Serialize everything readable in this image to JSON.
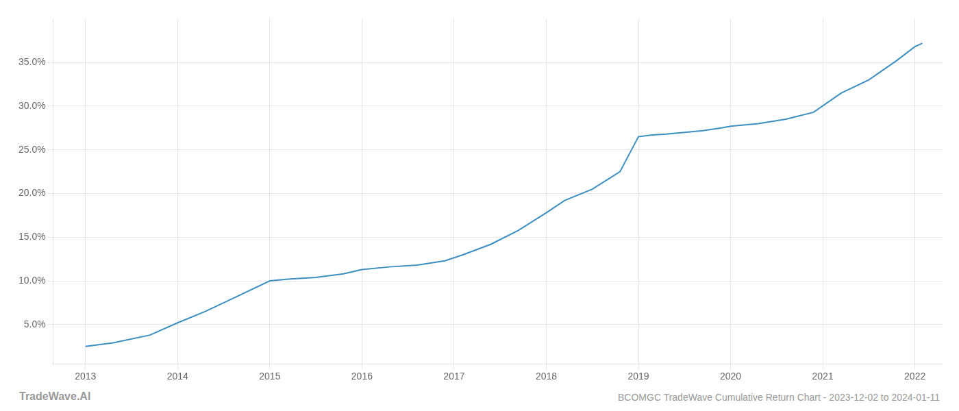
{
  "chart_data": {
    "type": "line",
    "x": [
      2013.0,
      2013.3,
      2013.7,
      2014.0,
      2014.3,
      2014.6,
      2015.0,
      2015.2,
      2015.5,
      2015.8,
      2016.0,
      2016.3,
      2016.6,
      2016.9,
      2017.1,
      2017.4,
      2017.7,
      2018.0,
      2018.2,
      2018.5,
      2018.8,
      2019.0,
      2019.15,
      2019.3,
      2019.5,
      2019.7,
      2019.9,
      2020.0,
      2020.3,
      2020.6,
      2020.9,
      2021.2,
      2021.5,
      2021.8,
      2022.0,
      2022.08
    ],
    "values": [
      2.5,
      2.9,
      3.8,
      5.2,
      6.5,
      8.0,
      10.0,
      10.2,
      10.4,
      10.8,
      11.3,
      11.6,
      11.8,
      12.3,
      13.0,
      14.2,
      15.8,
      17.8,
      19.2,
      20.5,
      22.5,
      26.5,
      26.7,
      26.8,
      27.0,
      27.2,
      27.5,
      27.7,
      28.0,
      28.5,
      29.3,
      31.5,
      33.0,
      35.2,
      36.8,
      37.2
    ],
    "color": "#3b8fc0",
    "xlim": [
      2012.65,
      2022.3
    ],
    "xticks": [
      2013,
      2014,
      2015,
      2016,
      2017,
      2018,
      2019,
      2020,
      2021,
      2022
    ],
    "ylim": [
      0.5,
      40
    ],
    "yticks": [
      {
        "value": 5.0,
        "label": "5.0%"
      },
      {
        "value": 10.0,
        "label": "10.0%"
      },
      {
        "value": 15.0,
        "label": "15.0%"
      },
      {
        "value": 20.0,
        "label": "20.0%"
      },
      {
        "value": 25.0,
        "label": "25.0%"
      },
      {
        "value": 30.0,
        "label": "30.0%"
      },
      {
        "value": 35.0,
        "label": "35.0%"
      }
    ],
    "grid": true,
    "annotations": [
      "TradeWave.AI",
      "BCOMGC TradeWave Cumulative Return Chart - 2023-12-02 to 2024-01-11"
    ]
  }
}
